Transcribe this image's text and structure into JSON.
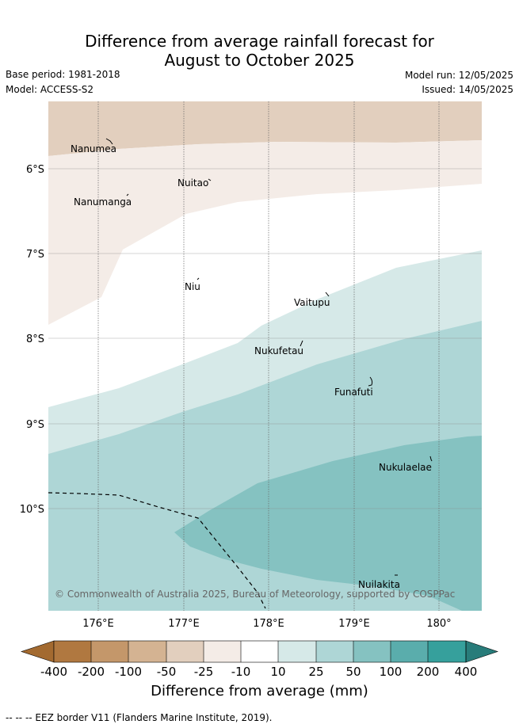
{
  "title_line1": "Difference from average rainfall forecast for",
  "title_line2": "August to October 2025",
  "base_period": "Base period: 1981-2018",
  "model": "Model: ACCESS-S2",
  "model_run": "Model run: 12/05/2025",
  "issued": "Issued: 14/05/2025",
  "copyright": "© Commonwealth of Australia 2025, Bureau of Meteorology, supported by COSPPac",
  "lat_labels": [
    "6°S",
    "7°S",
    "8°S",
    "9°S",
    "10°S"
  ],
  "lon_labels": [
    "176°E",
    "177°E",
    "178°E",
    "179°E",
    "180°"
  ],
  "islands": [
    "Nanumea",
    "Nuitao",
    "Nanumanga",
    "Niu",
    "Vaitupu",
    "Nukufetau",
    "Funafuti",
    "Nukulaelae",
    "Nuilakita"
  ],
  "colorbar": {
    "tick_labels": [
      "-400",
      "-200",
      "-100",
      "-50",
      "-25",
      "-10",
      "10",
      "25",
      "50",
      "100",
      "200",
      "400"
    ],
    "title": "Difference from average (mm)",
    "colors": {
      "below_min": "#a36a30",
      "-400_-200": "#b07840",
      "-200_-100": "#c4976a",
      "-100_-50": "#d4b392",
      "-50_-25": "#e2cfbe",
      "-25_-10": "#f4ece7",
      "-10_10": "#ffffff",
      "10_25": "#d6e9e8",
      "25_50": "#aed6d6",
      "50_100": "#85c2c1",
      "100_200": "#5aadac",
      "200_400": "#36a09c",
      "above_max": "#287c7a"
    }
  },
  "legend_note": "-- -- -- EEZ border V11 (Flanders Marine Institute, 2019)."
}
